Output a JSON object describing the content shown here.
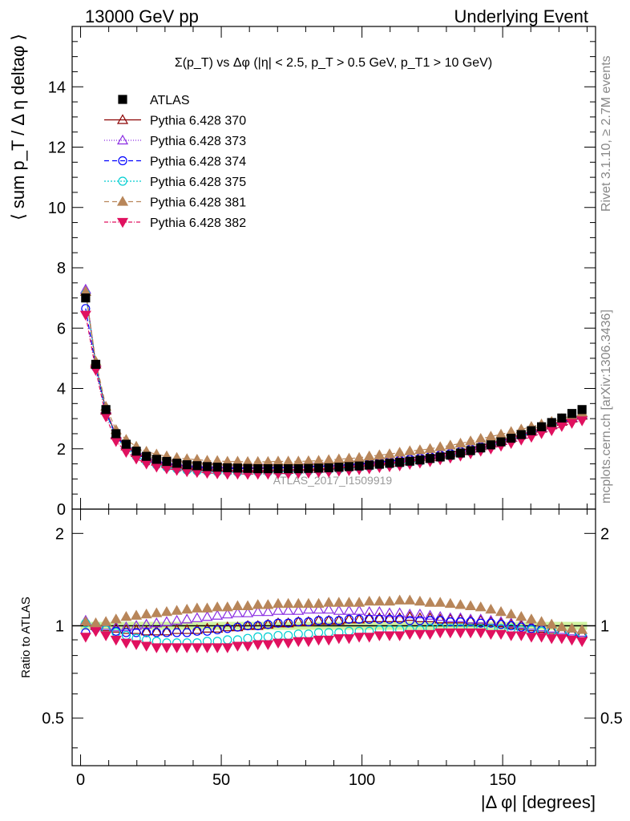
{
  "header": {
    "left": "13000 GeV pp",
    "right": "Underlying Event"
  },
  "side_labels": {
    "rivet": "Rivet 3.1.10, ≥ 2.7M events",
    "mcplots": "mcplots.cern.ch [arXiv:1306.3436]"
  },
  "chart_data": {
    "type": "scatter",
    "title": "Σ(p_T) vs Δφ (|η| < 2.5, p_T > 0.5 GeV, p_T1 > 10 GeV)",
    "xlabel": "|Δ φ| [degrees]",
    "ylabel": "⟨ sum p_T / Δ η deltaφ ⟩",
    "ratio_ylabel": "Ratio to ATLAS",
    "watermark": "ATLAS_2017_I1509919",
    "xlim": [
      -3,
      183
    ],
    "ylim": [
      0,
      16
    ],
    "ratio_ylim": [
      0.35,
      2.4
    ],
    "ratio_scale": "log",
    "x_ticks": [
      0,
      50,
      100,
      150
    ],
    "y_ticks": [
      0,
      2,
      4,
      6,
      8,
      10,
      12,
      14
    ],
    "ratio_ticks": [
      0.5,
      1,
      2
    ],
    "legend_position": "top-left",
    "x": [
      1.8,
      5.4,
      9.0,
      12.6,
      16.2,
      19.8,
      23.4,
      27.0,
      30.6,
      34.2,
      37.8,
      41.4,
      45.0,
      48.6,
      52.2,
      55.8,
      59.4,
      63.0,
      66.6,
      70.2,
      73.8,
      77.4,
      81.0,
      84.6,
      88.2,
      91.8,
      95.4,
      99.0,
      102.6,
      106.2,
      109.8,
      113.4,
      117.0,
      120.6,
      124.2,
      127.8,
      131.4,
      135.0,
      138.6,
      142.2,
      145.8,
      149.4,
      153.0,
      156.6,
      160.2,
      163.8,
      167.4,
      171.0,
      174.6,
      178.2
    ],
    "data": {
      "name": "ATLAS",
      "values": [
        7.0,
        4.8,
        3.3,
        2.5,
        2.15,
        1.92,
        1.75,
        1.65,
        1.58,
        1.52,
        1.47,
        1.44,
        1.41,
        1.39,
        1.37,
        1.36,
        1.35,
        1.34,
        1.34,
        1.34,
        1.34,
        1.34,
        1.35,
        1.36,
        1.37,
        1.39,
        1.41,
        1.43,
        1.46,
        1.49,
        1.52,
        1.55,
        1.59,
        1.63,
        1.68,
        1.73,
        1.79,
        1.86,
        1.94,
        2.03,
        2.13,
        2.23,
        2.35,
        2.47,
        2.6,
        2.73,
        2.87,
        3.02,
        3.17,
        3.3
      ]
    },
    "series": [
      {
        "name": "Pythia 6.428 370",
        "color": "#8b0000",
        "marker": "triangle-open",
        "dash": "",
        "ratio": [
          1.03,
          1.0,
          0.99,
          0.98,
          0.97,
          0.97,
          0.96,
          0.96,
          0.96,
          0.97,
          0.97,
          0.97,
          0.98,
          0.98,
          0.99,
          0.99,
          1.0,
          1.0,
          1.01,
          1.02,
          1.02,
          1.03,
          1.03,
          1.04,
          1.04,
          1.04,
          1.05,
          1.05,
          1.06,
          1.06,
          1.06,
          1.06,
          1.07,
          1.06,
          1.06,
          1.05,
          1.05,
          1.05,
          1.04,
          1.04,
          1.03,
          1.02,
          1.01,
          1.0,
          0.99,
          0.98,
          0.97,
          0.96,
          0.95,
          0.94
        ]
      },
      {
        "name": "Pythia 6.428 373",
        "color": "#8a2be2",
        "marker": "triangle-open",
        "dash": "1,2",
        "ratio": [
          1.04,
          1.01,
          1.0,
          0.99,
          0.99,
          1.0,
          1.01,
          1.02,
          1.03,
          1.04,
          1.05,
          1.06,
          1.07,
          1.08,
          1.09,
          1.1,
          1.1,
          1.11,
          1.11,
          1.12,
          1.12,
          1.12,
          1.13,
          1.13,
          1.13,
          1.12,
          1.12,
          1.12,
          1.11,
          1.11,
          1.1,
          1.1,
          1.09,
          1.09,
          1.08,
          1.07,
          1.06,
          1.06,
          1.05,
          1.05,
          1.04,
          1.03,
          1.02,
          1.01,
          1.0,
          0.99,
          0.98,
          0.97,
          0.96,
          0.95
        ]
      },
      {
        "name": "Pythia 6.428 374",
        "color": "#0000ff",
        "marker": "circle-open",
        "dash": "6,4",
        "ratio": [
          0.95,
          0.98,
          0.97,
          0.96,
          0.95,
          0.95,
          0.95,
          0.95,
          0.95,
          0.95,
          0.95,
          0.96,
          0.96,
          0.97,
          0.98,
          0.99,
          1.0,
          1.0,
          1.01,
          1.02,
          1.02,
          1.03,
          1.03,
          1.04,
          1.04,
          1.04,
          1.05,
          1.05,
          1.05,
          1.05,
          1.05,
          1.05,
          1.04,
          1.04,
          1.04,
          1.04,
          1.03,
          1.03,
          1.03,
          1.02,
          1.02,
          1.01,
          1.0,
          0.99,
          0.98,
          0.97,
          0.96,
          0.95,
          0.94,
          0.93
        ]
      },
      {
        "name": "Pythia 6.428 375",
        "color": "#00ced1",
        "marker": "circle-open",
        "dash": "2,2",
        "ratio": [
          1.02,
          1.0,
          0.97,
          0.95,
          0.93,
          0.91,
          0.9,
          0.89,
          0.88,
          0.88,
          0.88,
          0.88,
          0.89,
          0.89,
          0.9,
          0.9,
          0.91,
          0.92,
          0.92,
          0.93,
          0.93,
          0.94,
          0.94,
          0.95,
          0.95,
          0.95,
          0.96,
          0.96,
          0.96,
          0.97,
          0.97,
          0.97,
          0.97,
          0.97,
          0.98,
          0.98,
          0.98,
          0.98,
          0.98,
          0.98,
          0.98,
          0.98,
          0.98,
          0.97,
          0.97,
          0.96,
          0.96,
          0.95,
          0.95,
          0.94
        ]
      },
      {
        "name": "Pythia 6.428 381",
        "color": "#b8865a",
        "marker": "triangle-filled",
        "dash": "6,4",
        "ratio": [
          1.03,
          1.02,
          1.03,
          1.05,
          1.07,
          1.08,
          1.09,
          1.1,
          1.11,
          1.12,
          1.13,
          1.14,
          1.14,
          1.15,
          1.15,
          1.16,
          1.16,
          1.17,
          1.17,
          1.18,
          1.18,
          1.18,
          1.18,
          1.18,
          1.19,
          1.19,
          1.19,
          1.19,
          1.2,
          1.2,
          1.2,
          1.21,
          1.21,
          1.2,
          1.19,
          1.19,
          1.18,
          1.17,
          1.16,
          1.15,
          1.13,
          1.11,
          1.09,
          1.07,
          1.05,
          1.03,
          1.01,
          0.99,
          0.98,
          0.97
        ]
      },
      {
        "name": "Pythia 6.428 382",
        "color": "#e0115f",
        "marker": "triangle-down-filled",
        "dash": "5,2,1,2",
        "ratio": [
          0.92,
          0.96,
          0.93,
          0.9,
          0.88,
          0.87,
          0.86,
          0.85,
          0.85,
          0.85,
          0.85,
          0.85,
          0.85,
          0.85,
          0.85,
          0.86,
          0.86,
          0.87,
          0.87,
          0.88,
          0.88,
          0.89,
          0.89,
          0.9,
          0.9,
          0.91,
          0.91,
          0.92,
          0.92,
          0.93,
          0.93,
          0.93,
          0.94,
          0.94,
          0.94,
          0.95,
          0.95,
          0.95,
          0.95,
          0.95,
          0.94,
          0.94,
          0.93,
          0.93,
          0.92,
          0.92,
          0.91,
          0.91,
          0.9,
          0.89
        ]
      }
    ]
  }
}
